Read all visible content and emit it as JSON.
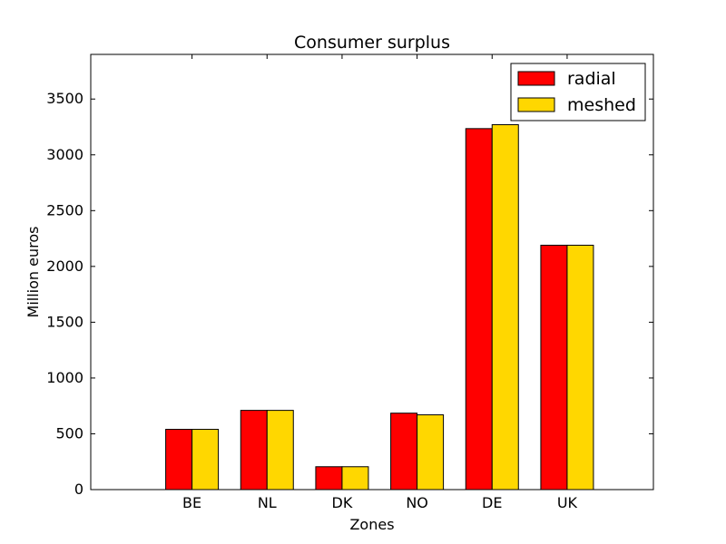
{
  "chart_data": {
    "type": "bar",
    "title": "Consumer surplus",
    "xlabel": "Zones",
    "ylabel": "Million euros",
    "categories": [
      "BE",
      "NL",
      "DK",
      "NO",
      "DE",
      "UK"
    ],
    "ylim": [
      0,
      3900
    ],
    "yticks": [
      0,
      500,
      1000,
      1500,
      2000,
      2500,
      3000,
      3500
    ],
    "grid": false,
    "legend_position": "top-right",
    "series": [
      {
        "name": "radial",
        "color": "#ff0000",
        "values": [
          540,
          710,
          205,
          685,
          3235,
          2190
        ]
      },
      {
        "name": "meshed",
        "color": "#ffd700",
        "values": [
          540,
          710,
          205,
          670,
          3270,
          2190
        ]
      }
    ]
  }
}
